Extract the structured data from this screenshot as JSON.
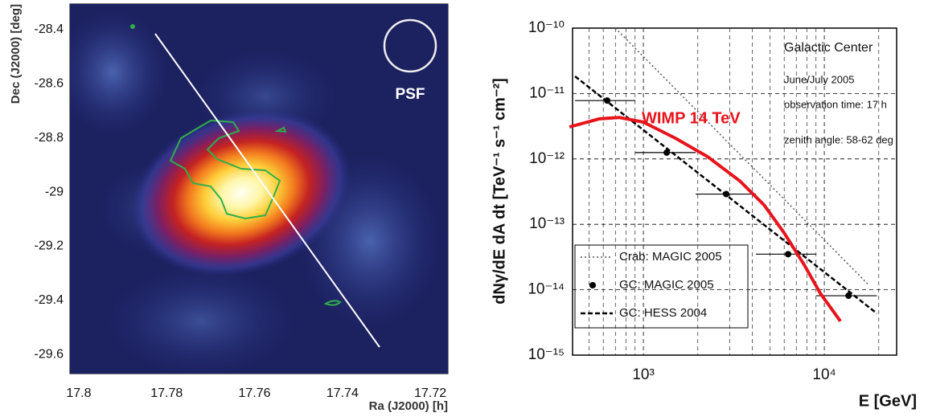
{
  "chart_data": [
    {
      "type": "heatmap",
      "xlabel": "Ra (J2000) [h]",
      "ylabel": "Dec (J2000) [deg]",
      "annotation": "PSF",
      "xlim": [
        17.802,
        17.716
      ],
      "ylim": [
        -29.671,
        -28.305
      ],
      "xticks": [
        17.8,
        17.78,
        17.76,
        17.74,
        17.72
      ],
      "yticks": [
        -28.4,
        -28.6,
        -28.8,
        -29,
        -29.2,
        -29.4,
        -29.6
      ],
      "grid": false
    },
    {
      "type": "line",
      "xlabel": "E [GeV]",
      "ylabel": "dNγ/dE dA dt [TeV⁻¹ s⁻¹ cm⁻²]",
      "annotations": [
        "Galactic Center",
        "June/July 2005",
        "observation time: 17 h",
        "zenith angle: 58-62 deg"
      ],
      "xscale": "log",
      "yscale": "log",
      "xlim": [
        406,
        25100
      ],
      "ylim": [
        1e-15,
        1e-10
      ],
      "xticks": [
        {
          "value": 1000,
          "label": "10³"
        },
        {
          "value": 10000,
          "label": "10⁴"
        }
      ],
      "xminorticks": [
        500,
        600,
        700,
        800,
        900,
        2000,
        3000,
        4000,
        5000,
        6000,
        7000,
        8000,
        9000,
        20000
      ],
      "yticks": [
        {
          "value": 1e-15,
          "label": "10⁻¹⁵"
        },
        {
          "value": 1e-14,
          "label": "10⁻¹⁴"
        },
        {
          "value": 1e-13,
          "label": "10⁻¹³"
        },
        {
          "value": 1e-12,
          "label": "10⁻¹²"
        },
        {
          "value": 1e-11,
          "label": "10⁻¹¹"
        },
        {
          "value": 1e-10,
          "label": "10⁻¹⁰"
        }
      ],
      "grid": true,
      "legend": "lower left",
      "series": [
        {
          "name": "Crab: MAGIC 2005",
          "color": "#555555",
          "style": "dotted",
          "in_legend": true,
          "x": [
            700,
            17500
          ],
          "values": [
            1e-10,
            1.2e-14
          ]
        },
        {
          "name": "GC: MAGIC 2005",
          "color": "#000000",
          "style": "markers",
          "in_legend": true,
          "x": [
            631,
            1346,
            2870,
            6310,
            13600
          ],
          "values": [
            7.8e-12,
            1.25e-12,
            2.9e-13,
            3.5e-14,
            8.1e-15
          ],
          "x_low": [
            419,
            902,
            1945,
            4190,
            9030
          ],
          "x_high": [
            902,
            1945,
            4190,
            9030,
            19500
          ]
        },
        {
          "name": "GC: HESS 2004",
          "color": "#000000",
          "style": "dashed",
          "in_legend": true,
          "x": [
            419,
            19500
          ],
          "values": [
            1.83e-11,
            4.35e-15
          ]
        },
        {
          "name": "WIMP 14 TeV",
          "color": "#e8141c",
          "style": "solid",
          "in_legend": false,
          "x": [
            390,
            570,
            736,
            1000,
            1506,
            2268,
            3415,
            4642,
            5995,
            7743,
            9500,
            12270
          ],
          "values": [
            3.08e-12,
            4.1e-12,
            4.3e-12,
            3.65e-12,
            2.07e-12,
            1.08e-12,
            4.6e-13,
            1.98e-13,
            7.4e-14,
            2.4e-14,
            8.8e-15,
            3.3e-15
          ]
        }
      ]
    }
  ]
}
